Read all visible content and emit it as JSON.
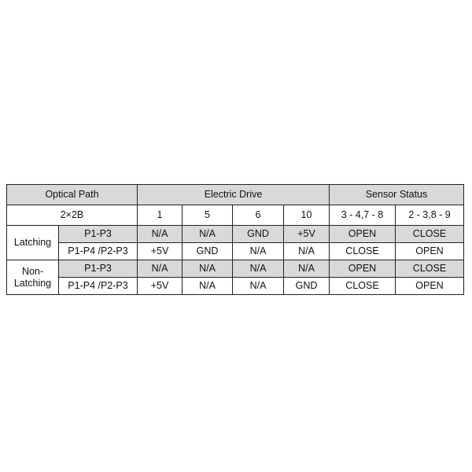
{
  "header": {
    "optical_path": "Optical Path",
    "electric_drive": "Electric Drive",
    "sensor_status": "Sensor Status"
  },
  "subheader": {
    "model": "2×2B",
    "pins": [
      "1",
      "5",
      "6",
      "10"
    ],
    "sensors": [
      "3 - 4,7 - 8",
      "2 - 3,8 - 9"
    ]
  },
  "groups": [
    {
      "label": "Latching",
      "rows": [
        {
          "path": "P1-P3",
          "drive": [
            "N/A",
            "N/A",
            "GND",
            "+5V"
          ],
          "sensor": [
            "OPEN",
            "CLOSE"
          ]
        },
        {
          "path": "P1-P4 /P2-P3",
          "drive": [
            "+5V",
            "GND",
            "N/A",
            "N/A"
          ],
          "sensor": [
            "CLOSE",
            "OPEN"
          ]
        }
      ]
    },
    {
      "label_line1": "Non-",
      "label_line2": "Latching",
      "rows": [
        {
          "path": "P1-P3",
          "drive": [
            "N/A",
            "N/A",
            "N/A",
            "N/A"
          ],
          "sensor": [
            "OPEN",
            "CLOSE"
          ]
        },
        {
          "path": "P1-P4 /P2-P3",
          "drive": [
            "+5V",
            "N/A",
            "N/A",
            "GND"
          ],
          "sensor": [
            "CLOSE",
            "OPEN"
          ]
        }
      ]
    }
  ],
  "colors": {
    "header_fill": "#d9d9d9",
    "border": "#222222"
  }
}
